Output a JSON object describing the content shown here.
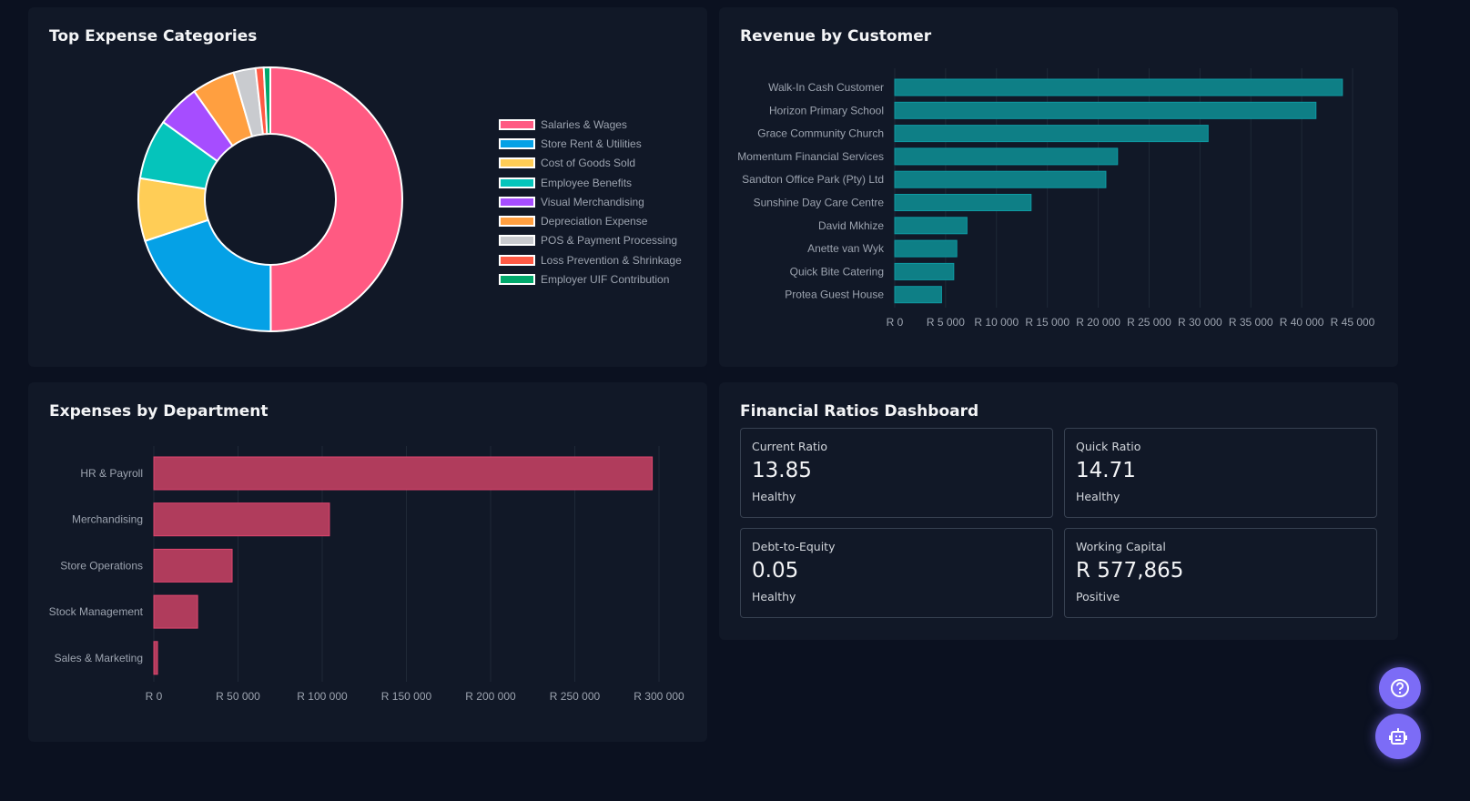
{
  "chart_data": [
    {
      "type": "pie",
      "title": "Top Expense Categories",
      "donut": true,
      "categories": [
        "Salaries & Wages",
        "Store Rent & Utilities",
        "Cost of Goods Sold",
        "Employee Benefits",
        "Visual Merchandising",
        "Depreciation Expense",
        "POS & Payment Processing",
        "Loss Prevention & Shrinkage",
        "Employer UIF Contribution"
      ],
      "values": [
        50.1,
        20,
        7.7,
        7.4,
        5.3,
        5.3,
        2.7,
        1.0,
        0.8
      ],
      "colors": [
        "#ff5a82",
        "#05a1e6",
        "#ffcd56",
        "#05c4bb",
        "#a64dff",
        "#ff9f40",
        "#c9cbcf",
        "#ff5a45",
        "#00a86b"
      ],
      "legend": "right"
    },
    {
      "type": "bar",
      "orientation": "horizontal",
      "title": "Revenue by Customer",
      "categories": [
        "Walk-In Cash Customer",
        "Horizon Primary School",
        "Grace Community Church",
        "Momentum Financial Services",
        "Sandton Office Park (Pty) Ltd",
        "Sunshine Day Care Centre",
        "David Mkhize",
        "Anette van Wyk",
        "Quick Bite Catering",
        "Protea Guest House"
      ],
      "values": [
        44000,
        41400,
        30800,
        21900,
        20750,
        13400,
        7100,
        6100,
        5800,
        4600
      ],
      "xlim": [
        0,
        45000
      ],
      "ticks": [
        "R 0",
        "R 5 000",
        "R 10 000",
        "R 15 000",
        "R 20 000",
        "R 25 000",
        "R 30 000",
        "R 35 000",
        "R 40 000",
        "R 45 000"
      ],
      "color": "#0e7f86"
    },
    {
      "type": "bar",
      "orientation": "horizontal",
      "title": "Expenses by Department",
      "categories": [
        "HR & Payroll",
        "Merchandising",
        "Store Operations",
        "Stock Management",
        "Sales & Marketing"
      ],
      "values": [
        296000,
        104300,
        46500,
        26000,
        2200
      ],
      "xlim": [
        0,
        300000
      ],
      "ticks": [
        "R 0",
        "R 50 000",
        "R 100 000",
        "R 150 000",
        "R 200 000",
        "R 250 000",
        "R 300 000"
      ],
      "color": "#b03c5c"
    }
  ],
  "ratios": {
    "title": "Financial Ratios Dashboard",
    "cards": [
      {
        "label": "Current Ratio",
        "value": "13.85",
        "status": "Healthy"
      },
      {
        "label": "Quick Ratio",
        "value": "14.71",
        "status": "Healthy"
      },
      {
        "label": "Debt-to-Equity",
        "value": "0.05",
        "status": "Healthy"
      },
      {
        "label": "Working Capital",
        "value": "R 577,865",
        "status": "Positive"
      }
    ]
  },
  "fabs": {
    "help": "help-icon",
    "assistant": "robot-icon"
  }
}
